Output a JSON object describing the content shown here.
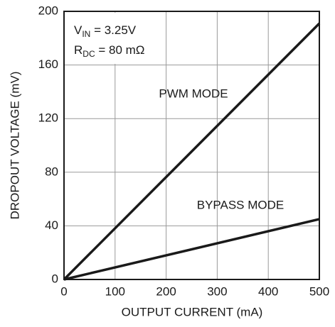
{
  "chart_data": {
    "type": "line",
    "xlabel": "OUTPUT CURRENT (mA)",
    "ylabel": "DROPOUT VOLTAGE (mV)",
    "annotations": [
      {
        "text": "V",
        "subscript": "IN",
        "suffix": " = 3.25V"
      },
      {
        "text": "R",
        "subscript": "DC",
        "suffix": " = 80 mΩ"
      }
    ],
    "x": [
      0,
      500
    ],
    "series": [
      {
        "name": "PWM MODE",
        "color": "#1a1a1a",
        "values": [
          0,
          191
        ]
      },
      {
        "name": "BYPASS MODE",
        "color": "#1a1a1a",
        "values": [
          0,
          45
        ]
      }
    ],
    "xlim": [
      0,
      500
    ],
    "xticks": [
      0,
      100,
      200,
      300,
      400,
      500
    ],
    "ylim": [
      0,
      200
    ],
    "yticks": [
      0,
      40,
      80,
      120,
      160,
      200
    ],
    "grid": true
  }
}
